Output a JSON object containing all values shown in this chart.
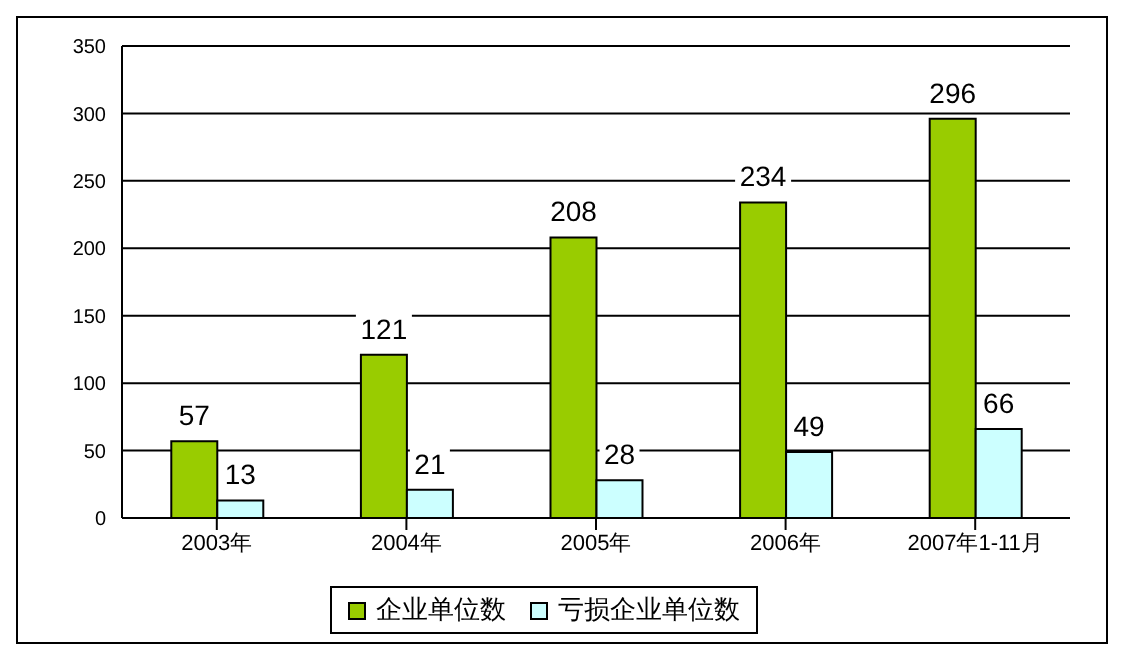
{
  "chart_data": {
    "type": "bar",
    "categories": [
      "2003年",
      "2004年",
      "2005年",
      "2006年",
      "2007年1-11月"
    ],
    "series": [
      {
        "name": "企业单位数",
        "color": "#99cc00",
        "values": [
          57,
          121,
          208,
          234,
          296
        ]
      },
      {
        "name": "亏损企业单位数",
        "color": "#ccffff",
        "values": [
          13,
          21,
          28,
          49,
          66
        ]
      }
    ],
    "ylim": [
      0,
      350
    ],
    "yticks": [
      0,
      50,
      100,
      150,
      200,
      250,
      300,
      350
    ],
    "grid": "y",
    "legend": "bottom",
    "data_labels": true
  }
}
